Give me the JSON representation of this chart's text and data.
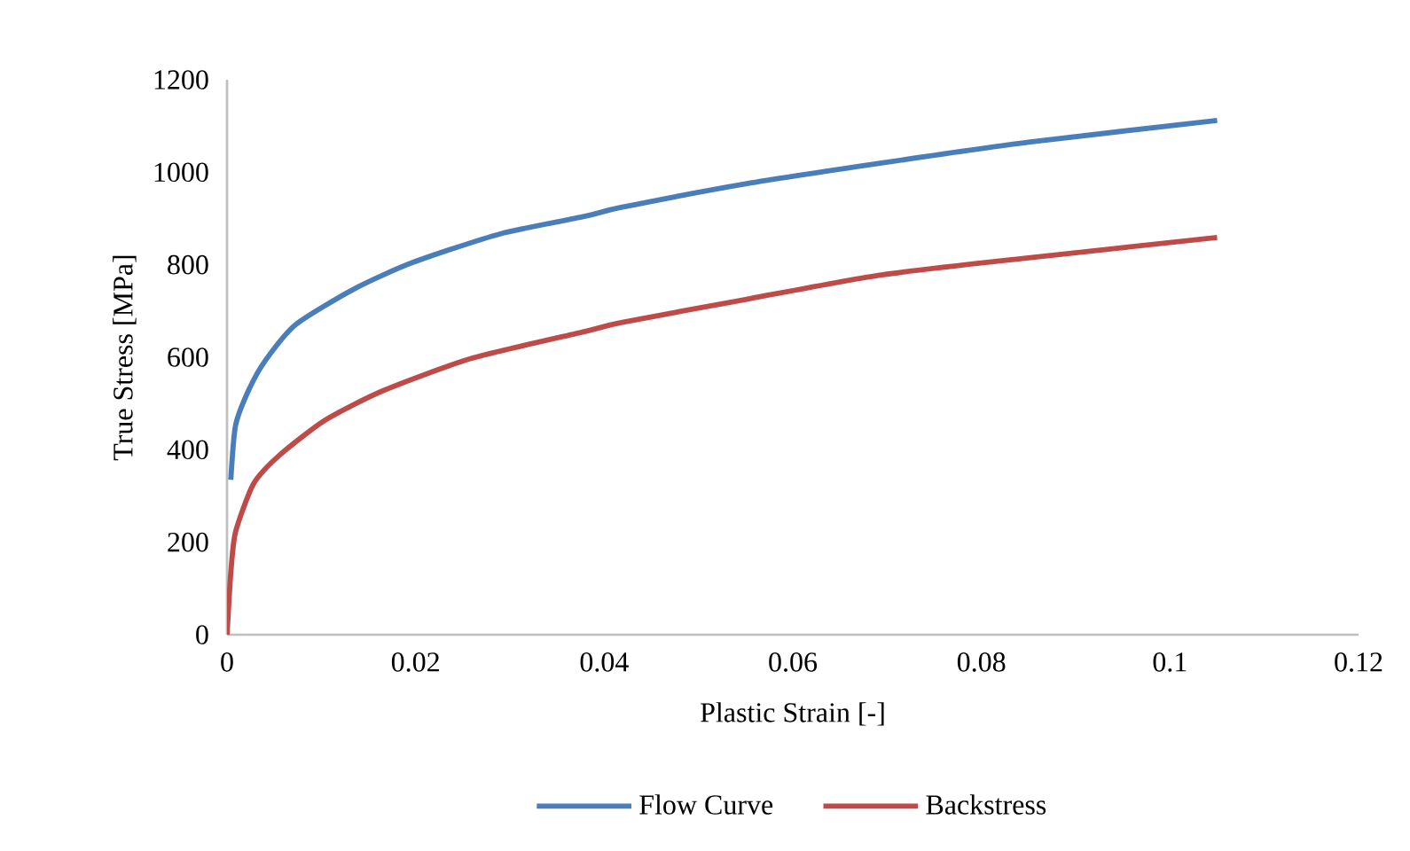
{
  "chart_data": {
    "type": "line",
    "xlabel": "Plastic Strain [-]",
    "ylabel": "True Stress [MPa]",
    "xlim": [
      0,
      0.12
    ],
    "ylim": [
      0,
      1200
    ],
    "xticks": [
      0,
      0.02,
      0.04,
      0.06,
      0.08,
      0.1,
      0.12
    ],
    "yticks": [
      0,
      200,
      400,
      600,
      800,
      1000,
      1200
    ],
    "grid": false,
    "legend": "bottom",
    "marker": "none",
    "line_style": "solid",
    "series": [
      {
        "name": "Flow Curve",
        "color": "#4a7ebb",
        "x": [
          0.0004,
          0.0009,
          0.0023,
          0.0041,
          0.0073,
          0.0135,
          0.0197,
          0.029,
          0.038,
          0.0418,
          0.055,
          0.0694,
          0.085,
          0.105
        ],
        "values": [
          335,
          452,
          529,
          594,
          671,
          748,
          805,
          867,
          905,
          924,
          975,
          1020,
          1065,
          1112
        ]
      },
      {
        "name": "Backstress",
        "color": "#be4b48",
        "x": [
          0,
          0.0004,
          0.0009,
          0.0028,
          0.0055,
          0.0104,
          0.0167,
          0.026,
          0.038,
          0.0418,
          0.055,
          0.0694,
          0.085,
          0.105
        ],
        "values": [
          0,
          134,
          222,
          326,
          387,
          464,
          529,
          598,
          656,
          675,
          725,
          778,
          815,
          859
        ]
      }
    ]
  }
}
